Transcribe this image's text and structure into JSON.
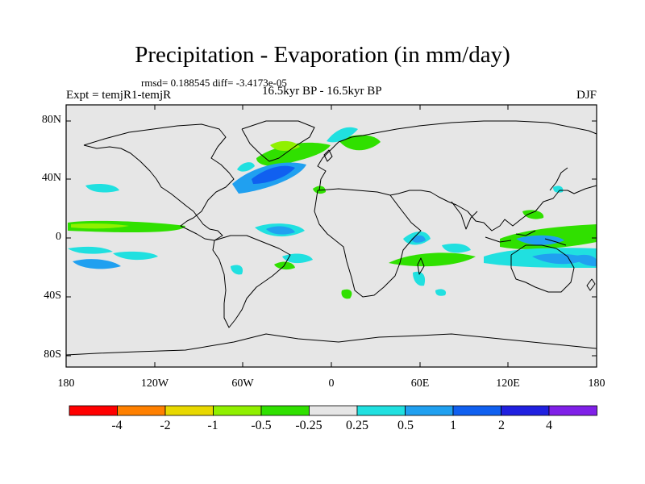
{
  "title": "Precipitation - Evaporation (in mm/day)",
  "stats": "rmsd= 0.188545  diff= -3.4173e-05",
  "expt": "Expt = temjR1-temjR",
  "period": "16.5kyr BP - 16.5kyr BP",
  "season": "DJF",
  "lat_labels": [
    "80N",
    "40N",
    "0",
    "40S",
    "80S"
  ],
  "lon_labels": [
    "180",
    "120W",
    "60W",
    "0",
    "60E",
    "120E",
    "180"
  ],
  "colorbar": {
    "colors": [
      "#ff0000",
      "#ff8000",
      "#e8d800",
      "#90f000",
      "#30e000",
      "#e6e6e6",
      "#20e0e0",
      "#20a0f0",
      "#1060f0",
      "#2020e0",
      "#8020e8"
    ],
    "labels": [
      "-4",
      "-2",
      "-1",
      "-0.5",
      "-0.25",
      "0.25",
      "0.5",
      "1",
      "2",
      "4"
    ]
  }
}
